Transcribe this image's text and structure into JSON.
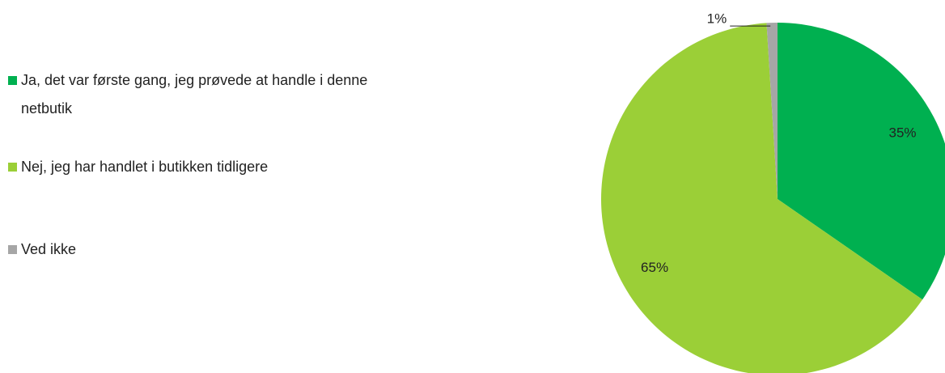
{
  "chart_data": {
    "type": "pie",
    "categories": [
      "Ja, det var første gang, jeg prøvede at handle i denne netbutik",
      "Nej, jeg har handlet i butikken tidligere",
      "Ved ikke"
    ],
    "values": [
      35,
      65,
      1
    ],
    "value_labels": [
      "35%",
      "65%",
      "1%"
    ],
    "colors": [
      "#00b050",
      "#9bcf37",
      "#a6a6a6"
    ],
    "legend": "left"
  }
}
